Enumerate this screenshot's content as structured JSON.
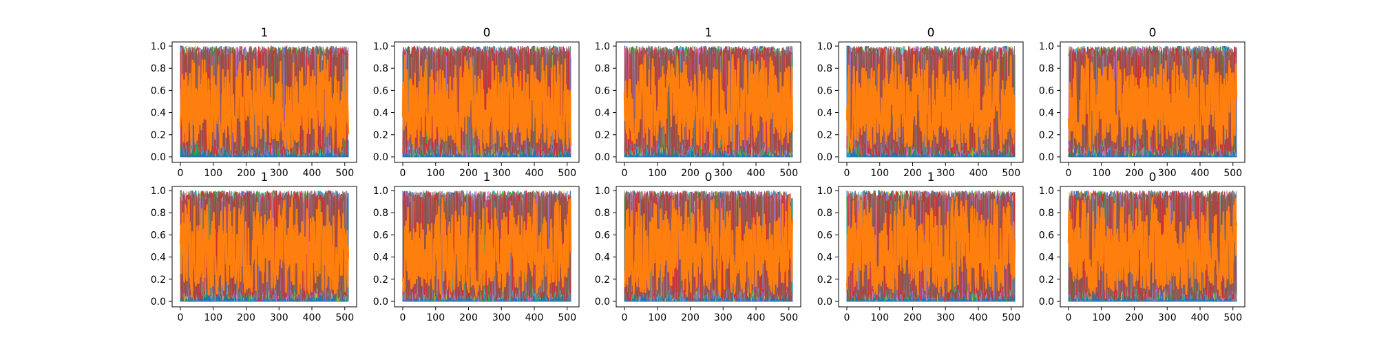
{
  "figure": {
    "colors": {
      "background": "#ffffff",
      "frame": "#000000",
      "series_blue": "#1f77b4",
      "series_orange": "#ff7f0e",
      "series_extra": [
        "#17becf",
        "#bcbd22",
        "#2ca02c",
        "#e377c2",
        "#9467bd",
        "#7f7f7f",
        "#d62728",
        "#8c564b"
      ]
    }
  },
  "chart_data": [
    {
      "type": "line",
      "title": "1",
      "seed": 11,
      "xlim": [
        0,
        511
      ],
      "ylim": [
        0,
        1
      ],
      "xticks": [
        "0",
        "100",
        "200",
        "300",
        "400",
        "500"
      ],
      "yticks": [
        "0.0",
        "0.2",
        "0.4",
        "0.6",
        "0.8",
        "1.0"
      ],
      "grid": false,
      "legend": "none"
    },
    {
      "type": "line",
      "title": "0",
      "seed": 23,
      "xlim": [
        0,
        511
      ],
      "ylim": [
        0,
        1
      ],
      "xticks": [
        "0",
        "100",
        "200",
        "300",
        "400",
        "500"
      ],
      "yticks": [
        "0.0",
        "0.2",
        "0.4",
        "0.6",
        "0.8",
        "1.0"
      ],
      "grid": false,
      "legend": "none"
    },
    {
      "type": "line",
      "title": "1",
      "seed": 37,
      "xlim": [
        0,
        511
      ],
      "ylim": [
        0,
        1
      ],
      "xticks": [
        "0",
        "100",
        "200",
        "300",
        "400",
        "500"
      ],
      "yticks": [
        "0.0",
        "0.2",
        "0.4",
        "0.6",
        "0.8",
        "1.0"
      ],
      "grid": false,
      "legend": "none"
    },
    {
      "type": "line",
      "title": "0",
      "seed": 41,
      "xlim": [
        0,
        511
      ],
      "ylim": [
        0,
        1
      ],
      "xticks": [
        "0",
        "100",
        "200",
        "300",
        "400",
        "500"
      ],
      "yticks": [
        "0.0",
        "0.2",
        "0.4",
        "0.6",
        "0.8",
        "1.0"
      ],
      "grid": false,
      "legend": "none"
    },
    {
      "type": "line",
      "title": "0",
      "seed": 53,
      "xlim": [
        0,
        511
      ],
      "ylim": [
        0,
        1
      ],
      "xticks": [
        "0",
        "100",
        "200",
        "300",
        "400",
        "500"
      ],
      "yticks": [
        "0.0",
        "0.2",
        "0.4",
        "0.6",
        "0.8",
        "1.0"
      ],
      "grid": false,
      "legend": "none"
    },
    {
      "type": "line",
      "title": "1",
      "seed": 67,
      "xlim": [
        0,
        511
      ],
      "ylim": [
        0,
        1
      ],
      "xticks": [
        "0",
        "100",
        "200",
        "300",
        "400",
        "500"
      ],
      "yticks": [
        "0.0",
        "0.2",
        "0.4",
        "0.6",
        "0.8",
        "1.0"
      ],
      "grid": false,
      "legend": "none"
    },
    {
      "type": "line",
      "title": "1",
      "seed": 71,
      "xlim": [
        0,
        511
      ],
      "ylim": [
        0,
        1
      ],
      "xticks": [
        "0",
        "100",
        "200",
        "300",
        "400",
        "500"
      ],
      "yticks": [
        "0.0",
        "0.2",
        "0.4",
        "0.6",
        "0.8",
        "1.0"
      ],
      "grid": false,
      "legend": "none"
    },
    {
      "type": "line",
      "title": "0",
      "seed": 83,
      "xlim": [
        0,
        511
      ],
      "ylim": [
        0,
        1
      ],
      "xticks": [
        "0",
        "100",
        "200",
        "300",
        "400",
        "500"
      ],
      "yticks": [
        "0.0",
        "0.2",
        "0.4",
        "0.6",
        "0.8",
        "1.0"
      ],
      "grid": false,
      "legend": "none"
    },
    {
      "type": "line",
      "title": "1",
      "seed": 97,
      "xlim": [
        0,
        511
      ],
      "ylim": [
        0,
        1
      ],
      "xticks": [
        "0",
        "100",
        "200",
        "300",
        "400",
        "500"
      ],
      "yticks": [
        "0.0",
        "0.2",
        "0.4",
        "0.6",
        "0.8",
        "1.0"
      ],
      "grid": false,
      "legend": "none"
    },
    {
      "type": "line",
      "title": "0",
      "seed": 101,
      "xlim": [
        0,
        511
      ],
      "ylim": [
        0,
        1
      ],
      "xticks": [
        "0",
        "100",
        "200",
        "300",
        "400",
        "500"
      ],
      "yticks": [
        "0.0",
        "0.2",
        "0.4",
        "0.6",
        "0.8",
        "1.0"
      ],
      "grid": false,
      "legend": "none"
    }
  ]
}
